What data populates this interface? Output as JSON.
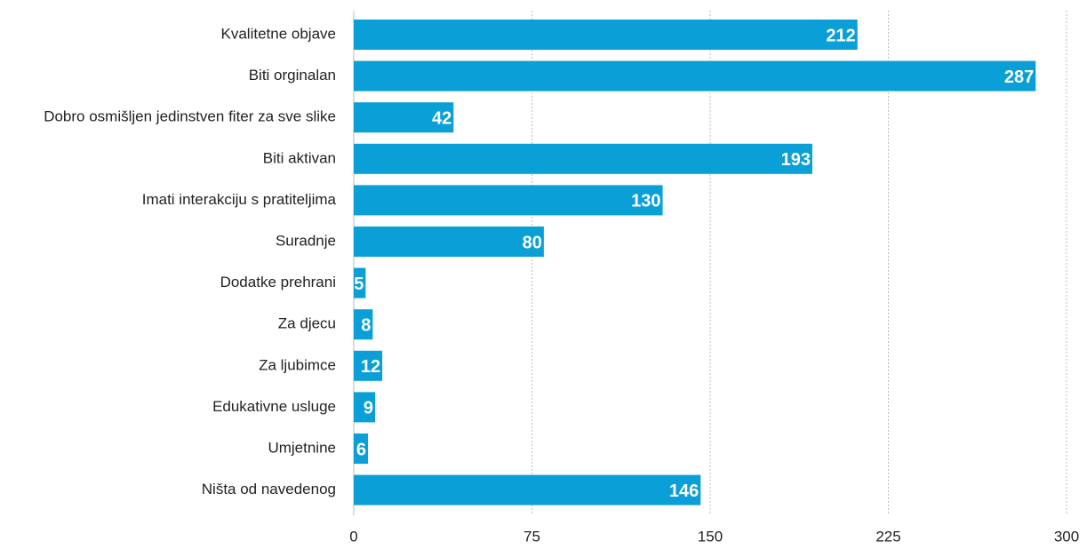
{
  "chart_data": {
    "type": "bar",
    "orientation": "horizontal",
    "categories": [
      "Kvalitetne objave",
      "Biti orginalan",
      "Dobro osmišljen jedinstven fiter za sve slike",
      "Biti aktivan",
      "Imati interakciju s pratiteljima",
      "Suradnje",
      "Dodatke prehrani",
      "Za djecu",
      "Za ljubimce",
      "Edukativne usluge",
      "Umjetnine",
      "Ništa od navedenog"
    ],
    "values": [
      212,
      287,
      42,
      193,
      130,
      80,
      5,
      8,
      12,
      9,
      6,
      146
    ],
    "color": "#0a9fd6",
    "xlim": [
      0,
      300
    ],
    "xticks": [
      0,
      75,
      150,
      225,
      300
    ],
    "grid": true
  }
}
